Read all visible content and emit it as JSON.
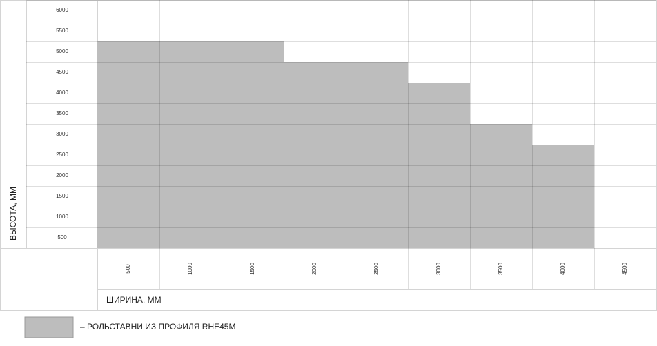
{
  "chart_data": {
    "type": "bar",
    "y_label": "ВЫСОТА, ММ",
    "x_label": "ШИРИНА, ММ",
    "categories": [
      "500",
      "1000",
      "1500",
      "2000",
      "2500",
      "3000",
      "3500",
      "4000",
      "4500"
    ],
    "series": [
      {
        "name": "– РОЛЬСТАВНИ ИЗ ПРОФИЛЯ RHE45M",
        "color": "#bdbdbd",
        "values": [
          5000,
          5000,
          5000,
          4500,
          4500,
          4000,
          3000,
          2500,
          null
        ]
      }
    ],
    "ylim": [
      0,
      6000
    ],
    "yticks": [
      500,
      1000,
      1500,
      2000,
      2500,
      3000,
      3500,
      4000,
      4500,
      5000,
      5500,
      6000
    ],
    "grid": true
  }
}
